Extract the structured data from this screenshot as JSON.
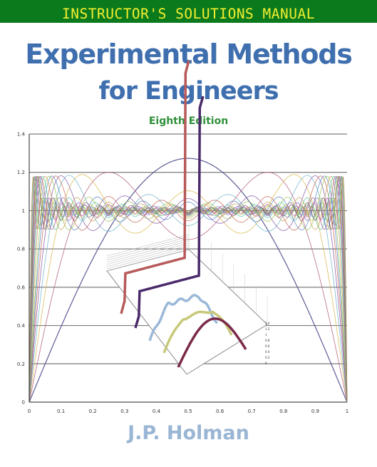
{
  "banner": {
    "text": "INSTRUCTOR'S SOLUTIONS MANUAL"
  },
  "cover": {
    "title_line1": "Experimental Methods",
    "title_line2": "for Engineers",
    "edition": "Eighth Edition",
    "author": "J.P. Holman"
  },
  "chart_data": {
    "type": "line",
    "xlim": [
      0,
      1
    ],
    "ylim": [
      0,
      1.4
    ],
    "x_ticks": [
      "0",
      "0.1",
      "0.2",
      "0.3",
      "0.4",
      "0.5",
      "0.6",
      "0.7",
      "0.8",
      "0.9",
      "1"
    ],
    "y_ticks": [
      "0",
      "0.2",
      "0.4",
      "0.6",
      "0.8",
      "1",
      "1.2",
      "1.4"
    ],
    "grid": true,
    "series_terms": [
      1,
      2,
      3,
      4,
      5,
      6,
      7,
      8,
      10,
      12,
      14,
      16,
      18,
      20,
      24,
      28,
      32,
      40
    ],
    "series_colors": [
      "#4a4a8c",
      "#b05a7a",
      "#d9b84a",
      "#6fb4c8",
      "#8a5aa8",
      "#c86a5a",
      "#5a8ac8",
      "#9ac85a",
      "#c8a05a",
      "#5ac8a8",
      "#a85a8a",
      "#7a7ac8",
      "#c8c85a",
      "#5a5a5a",
      "#c85a9a",
      "#6a9ac8",
      "#8ac86a",
      "#aa7a4a"
    ],
    "inset_ticks": [
      "1.4",
      "1.2",
      "1",
      "0.8",
      "0.6",
      "0.4",
      "0.2",
      "0"
    ]
  }
}
